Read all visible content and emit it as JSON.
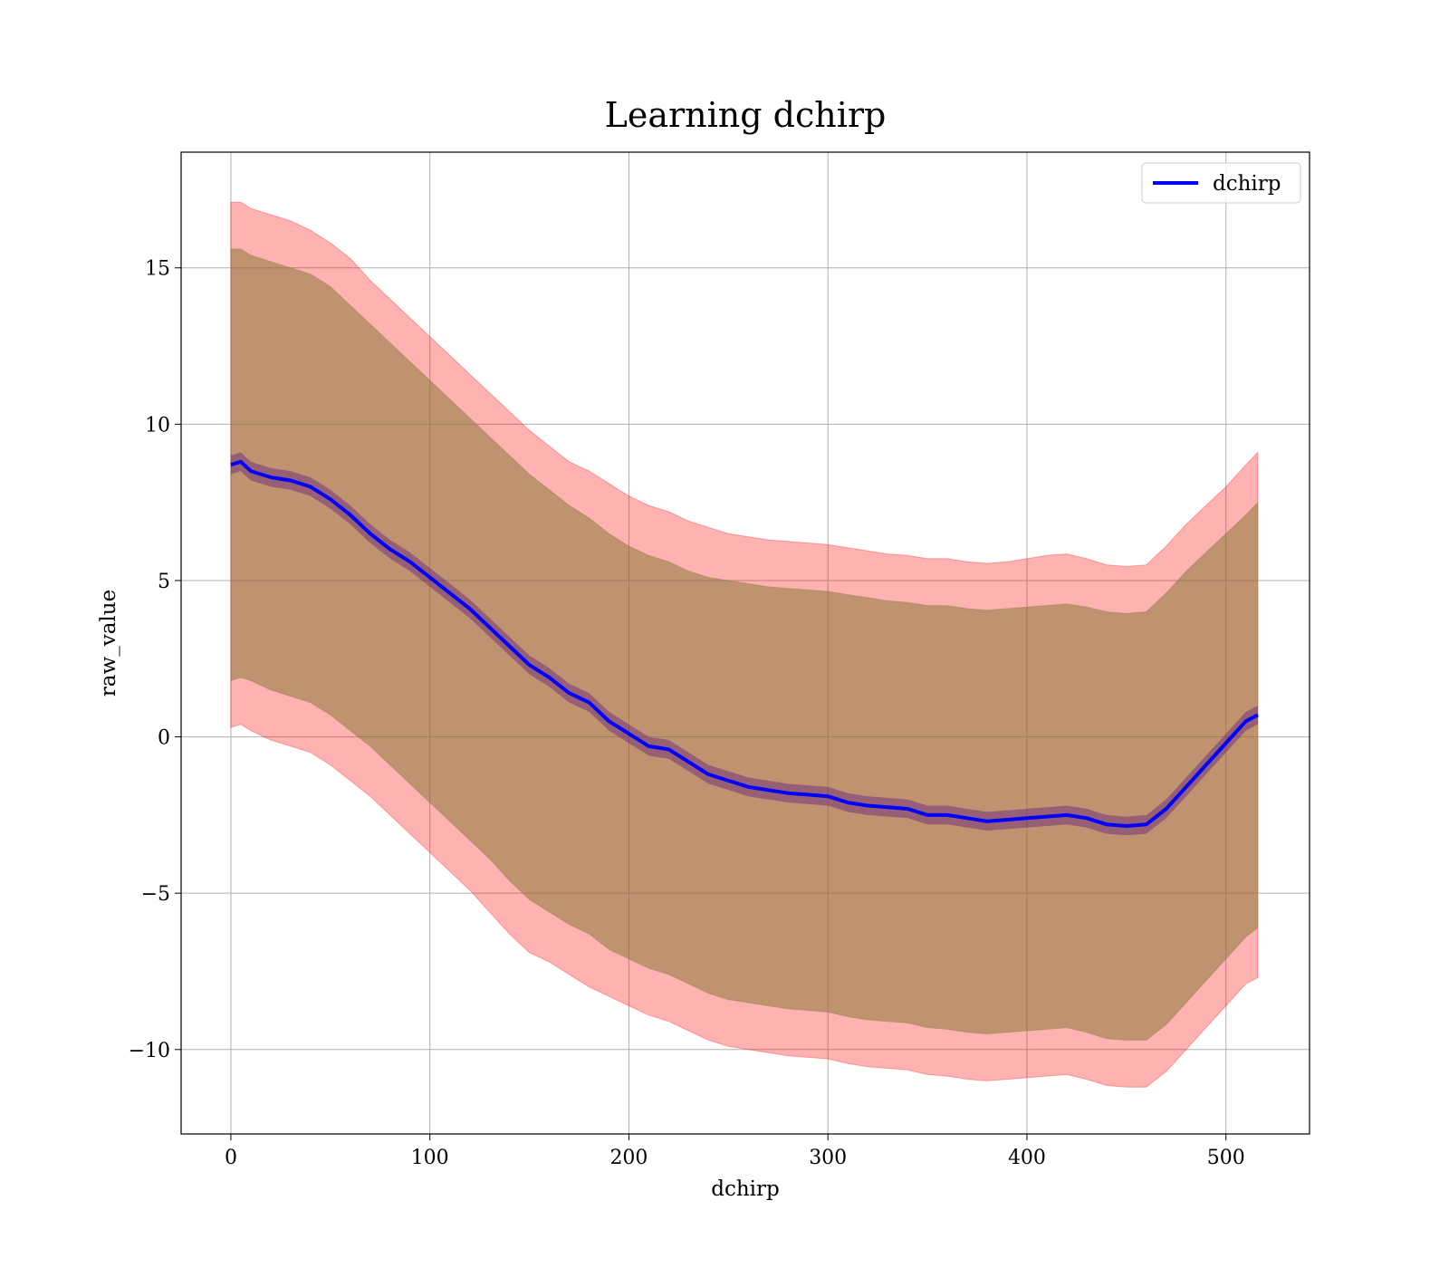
{
  "chart_data": {
    "type": "line",
    "title": "Learning dchirp",
    "xlabel": "dchirp",
    "ylabel": "raw_value",
    "xlim": [
      -25,
      542
    ],
    "ylim": [
      -12.7,
      18.7
    ],
    "x_ticks": [
      0,
      100,
      200,
      300,
      400,
      500
    ],
    "y_ticks": [
      -10,
      -5,
      0,
      5,
      10,
      15
    ],
    "x_tick_labels": [
      "0",
      "100",
      "200",
      "300",
      "400",
      "500"
    ],
    "y_tick_labels": [
      "−10",
      "−5",
      "0",
      "5",
      "10",
      "15"
    ],
    "grid": true,
    "legend": {
      "position": "top-right",
      "entries": [
        "dchirp"
      ]
    },
    "colors": {
      "line": "#0000ff",
      "outer_band": "#ff0000",
      "inner_band": "#8b7a3a",
      "narrow_band": "#4b0082"
    },
    "series": [
      {
        "name": "dchirp",
        "x": [
          0,
          5,
          10,
          20,
          30,
          40,
          50,
          60,
          70,
          80,
          90,
          100,
          110,
          120,
          130,
          140,
          150,
          160,
          170,
          180,
          190,
          200,
          210,
          220,
          230,
          240,
          250,
          260,
          270,
          280,
          290,
          300,
          310,
          320,
          330,
          340,
          350,
          360,
          370,
          380,
          390,
          400,
          410,
          420,
          430,
          440,
          450,
          460,
          470,
          480,
          490,
          500,
          510,
          516
        ],
        "mean": [
          8.7,
          8.8,
          8.5,
          8.3,
          8.2,
          8.0,
          7.6,
          7.1,
          6.5,
          6.0,
          5.6,
          5.1,
          4.6,
          4.1,
          3.5,
          2.9,
          2.3,
          1.9,
          1.4,
          1.1,
          0.5,
          0.1,
          -0.3,
          -0.4,
          -0.8,
          -1.2,
          -1.4,
          -1.6,
          -1.7,
          -1.8,
          -1.85,
          -1.9,
          -2.1,
          -2.2,
          -2.25,
          -2.3,
          -2.5,
          -2.5,
          -2.6,
          -2.7,
          -2.65,
          -2.6,
          -2.55,
          -2.5,
          -2.6,
          -2.8,
          -2.85,
          -2.8,
          -2.3,
          -1.6,
          -0.9,
          -0.2,
          0.5,
          0.7
        ],
        "inner_upper": [
          15.6,
          15.6,
          15.4,
          15.2,
          15.0,
          14.8,
          14.4,
          13.8,
          13.2,
          12.6,
          12.0,
          11.4,
          10.8,
          10.2,
          9.6,
          9.0,
          8.4,
          7.9,
          7.4,
          7.0,
          6.5,
          6.1,
          5.8,
          5.6,
          5.3,
          5.1,
          5.0,
          4.9,
          4.8,
          4.75,
          4.7,
          4.65,
          4.55,
          4.45,
          4.35,
          4.3,
          4.2,
          4.2,
          4.1,
          4.05,
          4.1,
          4.15,
          4.2,
          4.25,
          4.15,
          4.0,
          3.95,
          4.0,
          4.6,
          5.3,
          5.9,
          6.5,
          7.1,
          7.5
        ],
        "inner_lower": [
          1.8,
          1.9,
          1.8,
          1.5,
          1.3,
          1.1,
          0.7,
          0.2,
          -0.3,
          -0.9,
          -1.5,
          -2.1,
          -2.7,
          -3.3,
          -3.9,
          -4.6,
          -5.2,
          -5.6,
          -6.0,
          -6.3,
          -6.8,
          -7.1,
          -7.4,
          -7.6,
          -7.9,
          -8.2,
          -8.4,
          -8.5,
          -8.6,
          -8.7,
          -8.75,
          -8.8,
          -8.95,
          -9.05,
          -9.1,
          -9.15,
          -9.3,
          -9.35,
          -9.45,
          -9.5,
          -9.45,
          -9.4,
          -9.35,
          -9.3,
          -9.45,
          -9.65,
          -9.7,
          -9.7,
          -9.2,
          -8.5,
          -7.8,
          -7.1,
          -6.4,
          -6.1
        ],
        "outer_upper": [
          17.1,
          17.1,
          16.9,
          16.7,
          16.5,
          16.2,
          15.8,
          15.3,
          14.6,
          14.0,
          13.4,
          12.8,
          12.2,
          11.6,
          11.0,
          10.4,
          9.8,
          9.3,
          8.8,
          8.5,
          8.1,
          7.7,
          7.4,
          7.2,
          6.9,
          6.7,
          6.5,
          6.4,
          6.3,
          6.25,
          6.2,
          6.15,
          6.05,
          5.95,
          5.85,
          5.8,
          5.7,
          5.7,
          5.6,
          5.55,
          5.6,
          5.7,
          5.8,
          5.85,
          5.7,
          5.5,
          5.45,
          5.5,
          6.1,
          6.8,
          7.4,
          8.0,
          8.7,
          9.1
        ],
        "outer_lower": [
          0.3,
          0.4,
          0.2,
          -0.1,
          -0.3,
          -0.5,
          -0.9,
          -1.4,
          -1.9,
          -2.5,
          -3.1,
          -3.7,
          -4.3,
          -4.9,
          -5.6,
          -6.3,
          -6.9,
          -7.2,
          -7.6,
          -8.0,
          -8.3,
          -8.6,
          -8.9,
          -9.1,
          -9.4,
          -9.7,
          -9.9,
          -10.0,
          -10.1,
          -10.2,
          -10.25,
          -10.3,
          -10.45,
          -10.55,
          -10.6,
          -10.65,
          -10.8,
          -10.85,
          -10.95,
          -11.0,
          -10.95,
          -10.9,
          -10.85,
          -10.8,
          -10.95,
          -11.15,
          -11.2,
          -11.2,
          -10.7,
          -10.0,
          -9.3,
          -8.6,
          -7.9,
          -7.7
        ]
      }
    ]
  }
}
